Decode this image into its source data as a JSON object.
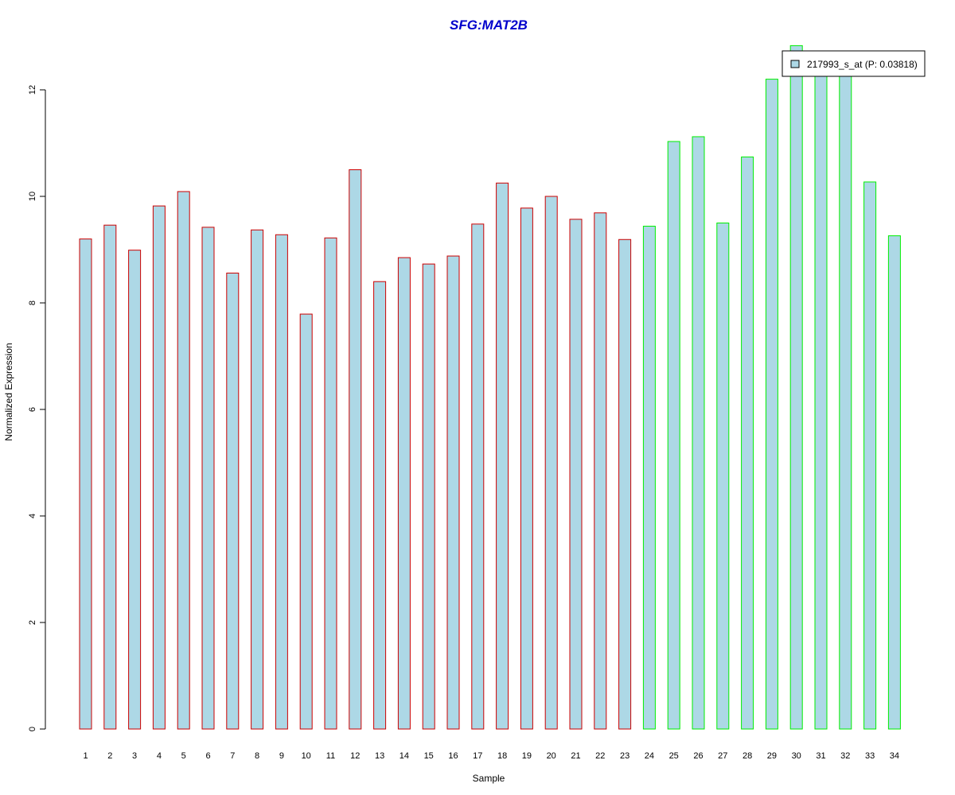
{
  "chart_data": {
    "type": "bar",
    "title": "SFG:MAT2B",
    "xlabel": "Sample",
    "ylabel": "Normalized Expression",
    "ylim": [
      0,
      12.85
    ],
    "yticks": [
      0,
      2,
      4,
      6,
      8,
      10,
      12
    ],
    "grid": false,
    "legend_position": "top-right",
    "categories": [
      "1",
      "2",
      "3",
      "4",
      "5",
      "6",
      "7",
      "8",
      "9",
      "10",
      "11",
      "12",
      "13",
      "14",
      "15",
      "16",
      "17",
      "18",
      "19",
      "20",
      "21",
      "22",
      "23",
      "24",
      "25",
      "26",
      "27",
      "28",
      "29",
      "30",
      "31",
      "32",
      "33",
      "34"
    ],
    "series": [
      {
        "name": "217993_s_at (P: 0.03818)",
        "values": [
          9.2,
          9.46,
          8.99,
          9.82,
          10.09,
          9.42,
          8.56,
          9.37,
          9.28,
          7.79,
          9.22,
          10.5,
          8.4,
          8.85,
          8.73,
          8.88,
          9.48,
          10.25,
          9.78,
          10.0,
          9.57,
          9.69,
          9.19,
          9.44,
          11.03,
          11.12,
          9.5,
          10.74,
          12.2,
          12.83,
          12.35,
          12.32,
          10.27,
          9.26
        ]
      }
    ],
    "groups": [
      {
        "from": 1,
        "to": 23,
        "border_color": "#cc0000"
      },
      {
        "from": 24,
        "to": 34,
        "border_color": "#00ee00"
      }
    ],
    "colors": {
      "bar_fill": "#add8e6",
      "title": "#0000cc",
      "axis": "#000000",
      "legend_border": "#000000"
    }
  }
}
